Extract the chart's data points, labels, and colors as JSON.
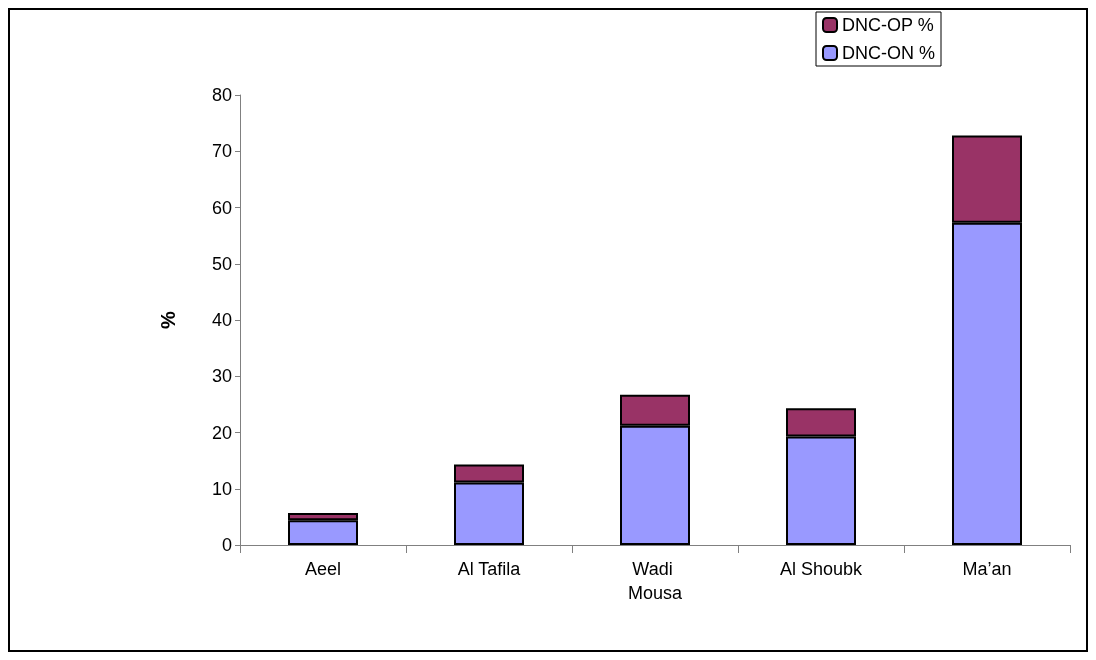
{
  "chart_data": {
    "type": "bar",
    "ylabel": "%",
    "categories": [
      "Aeel",
      "Al Tafila",
      "Wadi Mousa",
      "Al Shoubk",
      "Ma’an"
    ],
    "stacked": true,
    "series": [
      {
        "name": "DNC-ON %",
        "color": "#9999ff",
        "values": [
          4.4,
          11.1,
          21.2,
          19.3,
          57.3
        ]
      },
      {
        "name": "DNC-OP %",
        "color": "#993366",
        "values": [
          1.3,
          3.2,
          5.5,
          5.0,
          15.5
        ]
      }
    ],
    "ylim": [
      0,
      80
    ],
    "yticks": [
      0,
      10,
      20,
      30,
      40,
      50,
      60,
      70,
      80
    ],
    "grid": false,
    "legend": "top right"
  }
}
